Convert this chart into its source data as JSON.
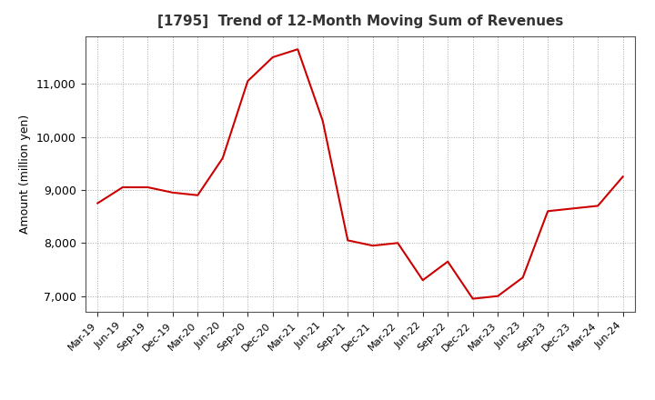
{
  "title": "[1795]  Trend of 12-Month Moving Sum of Revenues",
  "ylabel": "Amount (million yen)",
  "line_color": "#cc0000",
  "background_color": "#ffffff",
  "plot_bg_color": "#ffffff",
  "grid_color": "#aaaaaa",
  "ylim": [
    6700,
    11900
  ],
  "yticks": [
    7000,
    8000,
    9000,
    10000,
    11000
  ],
  "dates": [
    "Mar-19",
    "Jun-19",
    "Sep-19",
    "Dec-19",
    "Mar-20",
    "Jun-20",
    "Sep-20",
    "Dec-20",
    "Mar-21",
    "Jun-21",
    "Sep-21",
    "Dec-21",
    "Mar-22",
    "Jun-22",
    "Sep-22",
    "Dec-22",
    "Mar-23",
    "Jun-23",
    "Sep-23",
    "Dec-23",
    "Mar-24",
    "Jun-24"
  ],
  "values": [
    8750,
    9050,
    9050,
    8950,
    8900,
    9600,
    11050,
    11500,
    11650,
    10300,
    8050,
    7950,
    8000,
    7300,
    7650,
    6950,
    7000,
    7350,
    8600,
    8650,
    8700,
    9250
  ]
}
